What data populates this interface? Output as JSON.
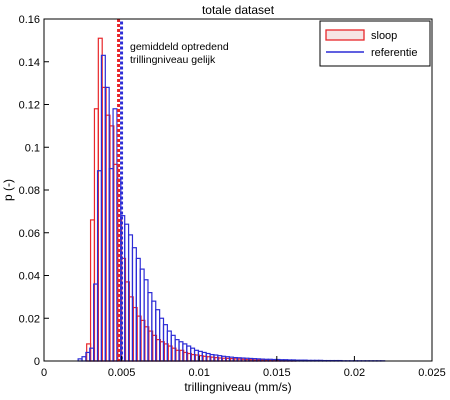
{
  "chart_data": {
    "type": "bar",
    "title": "totale dataset",
    "xlabel": "trillingniveau (mm/s)",
    "ylabel": "p (-)",
    "xlim": [
      0,
      0.025
    ],
    "ylim": [
      0,
      0.16
    ],
    "x_ticks": [
      0,
      0.005,
      0.01,
      0.015,
      0.02,
      0.025
    ],
    "x_tick_labels": [
      "0",
      "0.005",
      "0.01",
      "0.015",
      "0.02",
      "0.025"
    ],
    "y_ticks": [
      0,
      0.02,
      0.04,
      0.06,
      0.08,
      0.1,
      0.12,
      0.14,
      0.16
    ],
    "y_tick_labels": [
      "0",
      "0.02",
      "0.04",
      "0.06",
      "0.08",
      "0.1",
      "0.12",
      "0.14",
      "0.16"
    ],
    "grid": false,
    "legend_position": "top-right",
    "bin_width": 0.00025,
    "series": [
      {
        "name": "sloop",
        "color": "#e8262a",
        "bins_start": [
          0.00275,
          0.003,
          0.00325,
          0.0035,
          0.00375,
          0.004,
          0.00425,
          0.0045,
          0.00475,
          0.005,
          0.00525,
          0.0055,
          0.00575,
          0.006,
          0.00625,
          0.0065,
          0.00675,
          0.007,
          0.00725,
          0.0075,
          0.00775,
          0.008,
          0.00825,
          0.0085,
          0.00875,
          0.009,
          0.00925,
          0.0095,
          0.00975,
          0.01,
          0.01025,
          0.0105,
          0.01075,
          0.011,
          0.01125,
          0.0115,
          0.01175,
          0.012,
          0.01225,
          0.0125,
          0.01275,
          0.013,
          0.01325,
          0.0135,
          0.01375,
          0.014,
          0.01425,
          0.0145,
          0.01475,
          0.015,
          0.01525,
          0.0155,
          0.01575,
          0.016
        ],
        "values": [
          0.008,
          0.066,
          0.118,
          0.151,
          0.128,
          0.115,
          0.11,
          0.092,
          0.066,
          0.048,
          0.037,
          0.03,
          0.025,
          0.021,
          0.019,
          0.016,
          0.014,
          0.012,
          0.01,
          0.009,
          0.008,
          0.007,
          0.006,
          0.005,
          0.005,
          0.004,
          0.0035,
          0.003,
          0.0028,
          0.0025,
          0.0022,
          0.002,
          0.0018,
          0.0016,
          0.0014,
          0.0013,
          0.0012,
          0.0011,
          0.001,
          0.0009,
          0.0008,
          0.0007,
          0.0006,
          0.0005,
          0.0005,
          0.0004,
          0.0004,
          0.0003,
          0.0003,
          0.0003,
          0.0002,
          0.0002,
          0.0002,
          0.0001
        ]
      },
      {
        "name": "referentie",
        "color": "#2c2cd6",
        "bins_start": [
          0.0022,
          0.00245,
          0.0027,
          0.00295,
          0.0032,
          0.00345,
          0.0037,
          0.00395,
          0.0042,
          0.00445,
          0.0047,
          0.00495,
          0.0052,
          0.00545,
          0.0057,
          0.00595,
          0.0062,
          0.00645,
          0.0067,
          0.00695,
          0.0072,
          0.00745,
          0.0077,
          0.00795,
          0.0082,
          0.00845,
          0.0087,
          0.00895,
          0.0092,
          0.00945,
          0.0097,
          0.00995,
          0.0102,
          0.01045,
          0.0107,
          0.01095,
          0.0112,
          0.01145,
          0.0117,
          0.01195,
          0.0122,
          0.01245,
          0.0127,
          0.01295,
          0.0132,
          0.01345,
          0.0137,
          0.01395,
          0.0142,
          0.01445,
          0.0147,
          0.01495,
          0.0152,
          0.01545,
          0.0157,
          0.01595,
          0.0162,
          0.01645,
          0.0167,
          0.01695,
          0.0172,
          0.01745,
          0.0177,
          0.01795,
          0.0182,
          0.01845,
          0.0187,
          0.01895,
          0.0192,
          0.01945,
          0.0197,
          0.01995,
          0.0202,
          0.02045,
          0.0207,
          0.02095,
          0.0212,
          0.02145,
          0.0217
        ],
        "values": [
          0.001,
          0.002,
          0.004,
          0.006,
          0.036,
          0.089,
          0.143,
          0.128,
          0.09,
          0.118,
          0.085,
          0.068,
          0.064,
          0.059,
          0.053,
          0.048,
          0.043,
          0.038,
          0.032,
          0.028,
          0.024,
          0.02,
          0.017,
          0.014,
          0.012,
          0.01,
          0.009,
          0.008,
          0.007,
          0.006,
          0.005,
          0.0045,
          0.004,
          0.0035,
          0.003,
          0.0028,
          0.0025,
          0.0022,
          0.002,
          0.0018,
          0.0016,
          0.0015,
          0.0014,
          0.0013,
          0.0012,
          0.0011,
          0.001,
          0.0009,
          0.0008,
          0.0008,
          0.0007,
          0.0007,
          0.0006,
          0.0006,
          0.0005,
          0.0005,
          0.0004,
          0.0004,
          0.0004,
          0.0003,
          0.0003,
          0.0003,
          0.0003,
          0.0002,
          0.0002,
          0.0002,
          0.0002,
          0.0002,
          0.0001,
          0.0001,
          0.0001,
          0.0001,
          0.0001,
          0.0001,
          0.0001,
          0.0001,
          0.0001,
          0.0001,
          0.0001
        ]
      }
    ],
    "mean_line": {
      "x": 0.0049,
      "colors": [
        "#e8262a",
        "#2c2cd6"
      ],
      "annotation": [
        "gemiddeld optredend",
        "trillingniveau gelijk"
      ]
    }
  }
}
